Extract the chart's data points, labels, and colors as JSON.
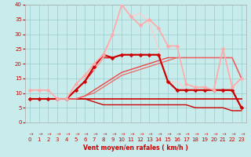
{
  "xlabel": "Vent moyen/en rafales ( km/h )",
  "xlim": [
    -0.5,
    23.5
  ],
  "ylim": [
    0,
    40
  ],
  "yticks": [
    0,
    5,
    10,
    15,
    20,
    25,
    30,
    35,
    40
  ],
  "xticks": [
    0,
    1,
    2,
    3,
    4,
    5,
    6,
    7,
    8,
    9,
    10,
    11,
    12,
    13,
    14,
    15,
    16,
    17,
    18,
    19,
    20,
    21,
    22,
    23
  ],
  "bg_color": "#c8ecec",
  "grid_color": "#99cccc",
  "lines": [
    {
      "x": [
        0,
        1,
        2,
        3,
        4,
        5,
        6,
        7,
        8,
        9,
        10,
        11,
        12,
        13,
        14,
        15,
        16,
        17,
        18,
        19,
        20,
        21,
        22,
        23
      ],
      "y": [
        8,
        8,
        8,
        8,
        8,
        8,
        8,
        8,
        8,
        8,
        8,
        8,
        8,
        8,
        8,
        8,
        8,
        8,
        8,
        8,
        8,
        8,
        8,
        8
      ],
      "color": "#cc0000",
      "lw": 1.2,
      "marker": null,
      "ms": 0
    },
    {
      "x": [
        0,
        1,
        2,
        3,
        4,
        5,
        6,
        7,
        8,
        9,
        10,
        11,
        12,
        13,
        14,
        15,
        16,
        17,
        18,
        19,
        20,
        21,
        22,
        23
      ],
      "y": [
        8,
        8,
        8,
        8,
        8,
        8,
        8,
        7,
        6,
        6,
        6,
        6,
        6,
        6,
        6,
        6,
        6,
        6,
        5,
        5,
        5,
        5,
        4,
        4
      ],
      "color": "#cc0000",
      "lw": 1.0,
      "marker": null,
      "ms": 0
    },
    {
      "x": [
        0,
        1,
        2,
        3,
        4,
        5,
        6,
        7,
        8,
        9,
        10,
        11,
        12,
        13,
        14,
        15,
        16,
        17,
        18,
        19,
        20,
        21,
        22,
        23
      ],
      "y": [
        8,
        8,
        8,
        8,
        8,
        11,
        14,
        19,
        23,
        22,
        23,
        23,
        23,
        23,
        23,
        14,
        11,
        11,
        11,
        11,
        11,
        11,
        11,
        5
      ],
      "color": "#cc0000",
      "lw": 1.5,
      "marker": "D",
      "ms": 2.5
    },
    {
      "x": [
        0,
        1,
        2,
        3,
        4,
        5,
        6,
        7,
        8,
        9,
        10,
        11,
        12,
        13,
        14,
        15,
        16,
        17,
        18,
        19,
        20,
        21,
        22,
        23
      ],
      "y": [
        8,
        8,
        8,
        8,
        8,
        11,
        14,
        18,
        22,
        22,
        23,
        23,
        23,
        23,
        23,
        14,
        11,
        11,
        11,
        11,
        11,
        11,
        11,
        5
      ],
      "color": "#dd2222",
      "lw": 1.2,
      "marker": null,
      "ms": 0
    },
    {
      "x": [
        0,
        1,
        2,
        3,
        4,
        5,
        6,
        7,
        8,
        9,
        10,
        11,
        12,
        13,
        14,
        15,
        16,
        17,
        18,
        19,
        20,
        21,
        22,
        23
      ],
      "y": [
        8,
        8,
        8,
        8,
        8,
        8,
        9,
        11,
        13,
        15,
        17,
        18,
        19,
        20,
        21,
        22,
        22,
        22,
        22,
        22,
        22,
        22,
        22,
        15
      ],
      "color": "#ee4444",
      "lw": 1.0,
      "marker": null,
      "ms": 0
    },
    {
      "x": [
        0,
        1,
        2,
        3,
        4,
        5,
        6,
        7,
        8,
        9,
        10,
        11,
        12,
        13,
        14,
        15,
        16,
        17,
        18,
        19,
        20,
        21,
        22,
        23
      ],
      "y": [
        8,
        8,
        8,
        8,
        8,
        8,
        9,
        10,
        12,
        14,
        16,
        17,
        18,
        19,
        20,
        21,
        22,
        22,
        22,
        22,
        22,
        22,
        22,
        15
      ],
      "color": "#ee6666",
      "lw": 0.9,
      "marker": null,
      "ms": 0
    },
    {
      "x": [
        0,
        1,
        2,
        3,
        4,
        5,
        6,
        7,
        8,
        9,
        10,
        11,
        12,
        13,
        14,
        15,
        16,
        17,
        18,
        19,
        20,
        21,
        22,
        23
      ],
      "y": [
        11,
        11,
        11,
        8,
        8,
        13,
        16,
        20,
        23,
        30,
        40,
        36,
        33,
        35,
        32,
        26,
        26,
        13,
        12,
        12,
        11,
        25,
        12,
        15
      ],
      "color": "#ffaaaa",
      "lw": 1.2,
      "marker": "D",
      "ms": 2.5
    },
    {
      "x": [
        0,
        1,
        2,
        3,
        4,
        5,
        6,
        7,
        8,
        9,
        10,
        11,
        12,
        13,
        14,
        15,
        16,
        17,
        18,
        19,
        20,
        21,
        22,
        23
      ],
      "y": [
        11,
        11,
        11,
        8,
        8,
        13,
        16,
        18,
        22,
        30,
        40,
        36,
        37,
        34,
        25,
        13,
        14,
        11,
        11,
        11,
        11,
        25,
        12,
        15
      ],
      "color": "#ffcccc",
      "lw": 1.0,
      "marker": null,
      "ms": 0
    }
  ],
  "arrow_symbol": "↗"
}
